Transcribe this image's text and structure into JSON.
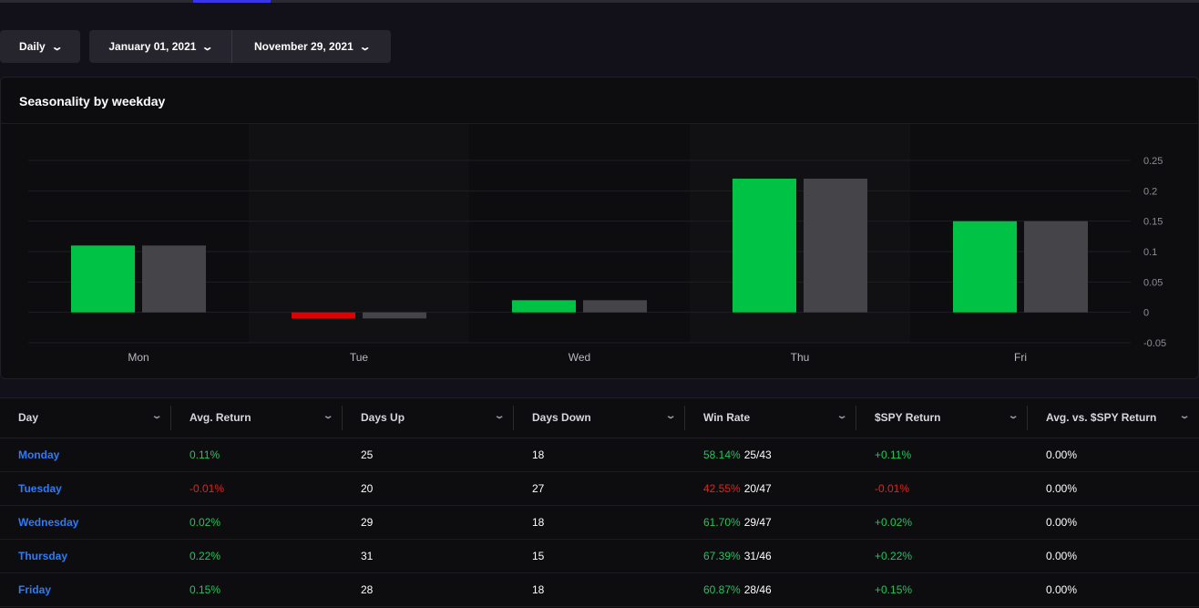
{
  "filters": {
    "period": "Daily",
    "start_date": "January 01, 2021",
    "end_date": "November 29, 2021"
  },
  "chart_card": {
    "title": "Seasonality by weekday"
  },
  "chart_data": {
    "type": "bar",
    "title": "Seasonality by weekday",
    "categories": [
      "Mon",
      "Tue",
      "Wed",
      "Thu",
      "Fri"
    ],
    "series": [
      {
        "values": [
          0.11,
          -0.01,
          0.02,
          0.22,
          0.15
        ]
      },
      {
        "values": [
          0.11,
          -0.01,
          0.02,
          0.22,
          0.15
        ]
      }
    ],
    "colors": {
      "positive": "#00c244",
      "negative": "#e00000",
      "comparison": "#454549"
    },
    "y_ticks": [
      "0.25",
      "0.2",
      "0.15",
      "0.1",
      "0.05",
      "0",
      "-0.05"
    ],
    "ylim": [
      -0.05,
      0.25
    ],
    "y_axis_side": "right",
    "grid": true
  },
  "table": {
    "headers": [
      "Day",
      "Avg. Return",
      "Days Up",
      "Days Down",
      "Win Rate",
      "$SPY Return",
      "Avg. vs. $SPY Return"
    ],
    "rows": [
      {
        "day": "Monday",
        "avg_return": "0.11%",
        "days_up": "25",
        "days_down": "18",
        "win_rate": "58.14%",
        "win_ratio": "25/43",
        "spy_return": "+0.11%",
        "avg_vs_spy": "0.00%"
      },
      {
        "day": "Tuesday",
        "avg_return": "-0.01%",
        "days_up": "20",
        "days_down": "27",
        "win_rate": "42.55%",
        "win_ratio": "20/47",
        "spy_return": "-0.01%",
        "avg_vs_spy": "0.00%"
      },
      {
        "day": "Wednesday",
        "avg_return": "0.02%",
        "days_up": "29",
        "days_down": "18",
        "win_rate": "61.70%",
        "win_ratio": "29/47",
        "spy_return": "+0.02%",
        "avg_vs_spy": "0.00%"
      },
      {
        "day": "Thursday",
        "avg_return": "0.22%",
        "days_up": "31",
        "days_down": "15",
        "win_rate": "67.39%",
        "win_ratio": "31/46",
        "spy_return": "+0.22%",
        "avg_vs_spy": "0.00%"
      },
      {
        "day": "Friday",
        "avg_return": "0.15%",
        "days_up": "28",
        "days_down": "18",
        "win_rate": "60.87%",
        "win_ratio": "28/46",
        "spy_return": "+0.15%",
        "avg_vs_spy": "0.00%"
      }
    ]
  },
  "colors": {
    "accent": "#3b35e8",
    "link": "#2d7cf6",
    "positive_text": "#22c55e",
    "negative_text": "#e5221a"
  }
}
